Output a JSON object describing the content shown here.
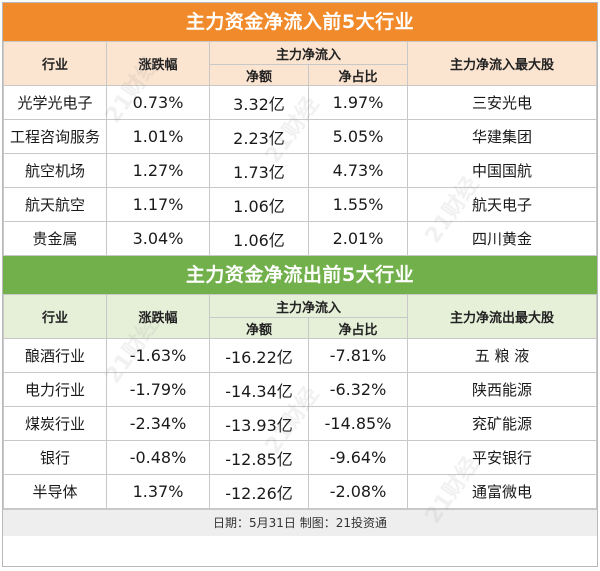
{
  "inflow": {
    "title": "主力资金净流入前5大行业",
    "headers": {
      "industry": "行业",
      "change": "涨跌幅",
      "main_flow": "主力净流入",
      "net": "净额",
      "ratio": "净占比",
      "top_stock": "主力净流入最大股"
    },
    "rows": [
      {
        "industry": "光学光电子",
        "change": "0.73%",
        "net": "3.32亿",
        "ratio": "1.97%",
        "stock": "三安光电"
      },
      {
        "industry": "工程咨询服务",
        "change": "1.01%",
        "net": "2.23亿",
        "ratio": "5.05%",
        "stock": "华建集团"
      },
      {
        "industry": "航空机场",
        "change": "1.27%",
        "net": "1.73亿",
        "ratio": "4.73%",
        "stock": "中国国航"
      },
      {
        "industry": "航天航空",
        "change": "1.17%",
        "net": "1.06亿",
        "ratio": "1.55%",
        "stock": "航天电子"
      },
      {
        "industry": "贵金属",
        "change": "3.04%",
        "net": "1.06亿",
        "ratio": "2.01%",
        "stock": "四川黄金"
      }
    ]
  },
  "outflow": {
    "title": "主力资金净流出前5大行业",
    "headers": {
      "industry": "行业",
      "change": "涨跌幅",
      "main_flow": "主力净流入",
      "net": "净额",
      "ratio": "净占比",
      "top_stock": "主力净流出最大股"
    },
    "rows": [
      {
        "industry": "酿酒行业",
        "change": "-1.63%",
        "net": "-16.22亿",
        "ratio": "-7.81%",
        "stock": "五 粮 液"
      },
      {
        "industry": "电力行业",
        "change": "-1.79%",
        "net": "-14.34亿",
        "ratio": "-6.32%",
        "stock": "陕西能源"
      },
      {
        "industry": "煤炭行业",
        "change": "-2.34%",
        "net": "-13.93亿",
        "ratio": "-14.85%",
        "stock": "兖矿能源"
      },
      {
        "industry": "银行",
        "change": "-0.48%",
        "net": "-12.85亿",
        "ratio": "-9.64%",
        "stock": "平安银行"
      },
      {
        "industry": "半导体",
        "change": "1.37%",
        "net": "-12.26亿",
        "ratio": "-2.08%",
        "stock": "通富微电"
      }
    ]
  },
  "footer": "日期：5月31日 制图：21投资通",
  "watermark": "21财经",
  "colors": {
    "inflow_title": "#f08a2a",
    "outflow_title": "#72b04c",
    "inflow_header": "#fbe4d0",
    "outflow_header": "#e6f0d9"
  }
}
